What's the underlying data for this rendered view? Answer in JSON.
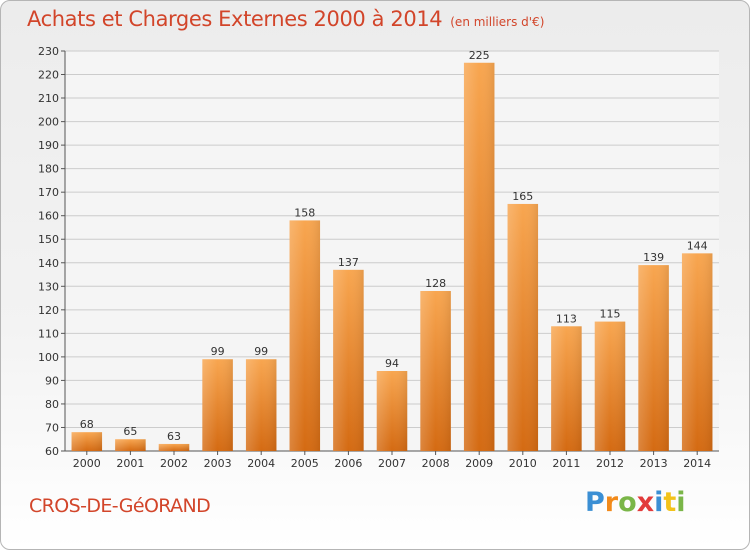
{
  "chart_data": {
    "type": "bar",
    "title": "Achats et Charges Externes 2000 à 2014",
    "subtitle": "(en milliers d'€)",
    "categories": [
      "2000",
      "2001",
      "2002",
      "2003",
      "2004",
      "2005",
      "2006",
      "2007",
      "2008",
      "2009",
      "2010",
      "2011",
      "2012",
      "2013",
      "2014"
    ],
    "values": [
      68,
      65,
      63,
      99,
      99,
      158,
      137,
      94,
      128,
      225,
      165,
      113,
      115,
      139,
      144
    ],
    "ylim": [
      60,
      230
    ],
    "yticks": [
      60,
      70,
      80,
      90,
      100,
      110,
      120,
      130,
      140,
      150,
      160,
      170,
      180,
      190,
      200,
      210,
      220,
      230
    ],
    "grid": true,
    "bar_colors": {
      "top": "#f8a650",
      "bottom": "#d46a12"
    },
    "grid_color": "#cccccc"
  },
  "footer": {
    "commune": "CROS-DE-GéORAND",
    "brand_letters": [
      {
        "ch": "P",
        "color": "#3b8fd4"
      },
      {
        "ch": "r",
        "color": "#f28a1a"
      },
      {
        "ch": "o",
        "color": "#7ab648"
      },
      {
        "ch": "x",
        "color": "#e23b3b"
      },
      {
        "ch": "i",
        "color": "#3b8fd4"
      },
      {
        "ch": "t",
        "color": "#f2c21a"
      },
      {
        "ch": "i",
        "color": "#7ab648"
      }
    ]
  }
}
